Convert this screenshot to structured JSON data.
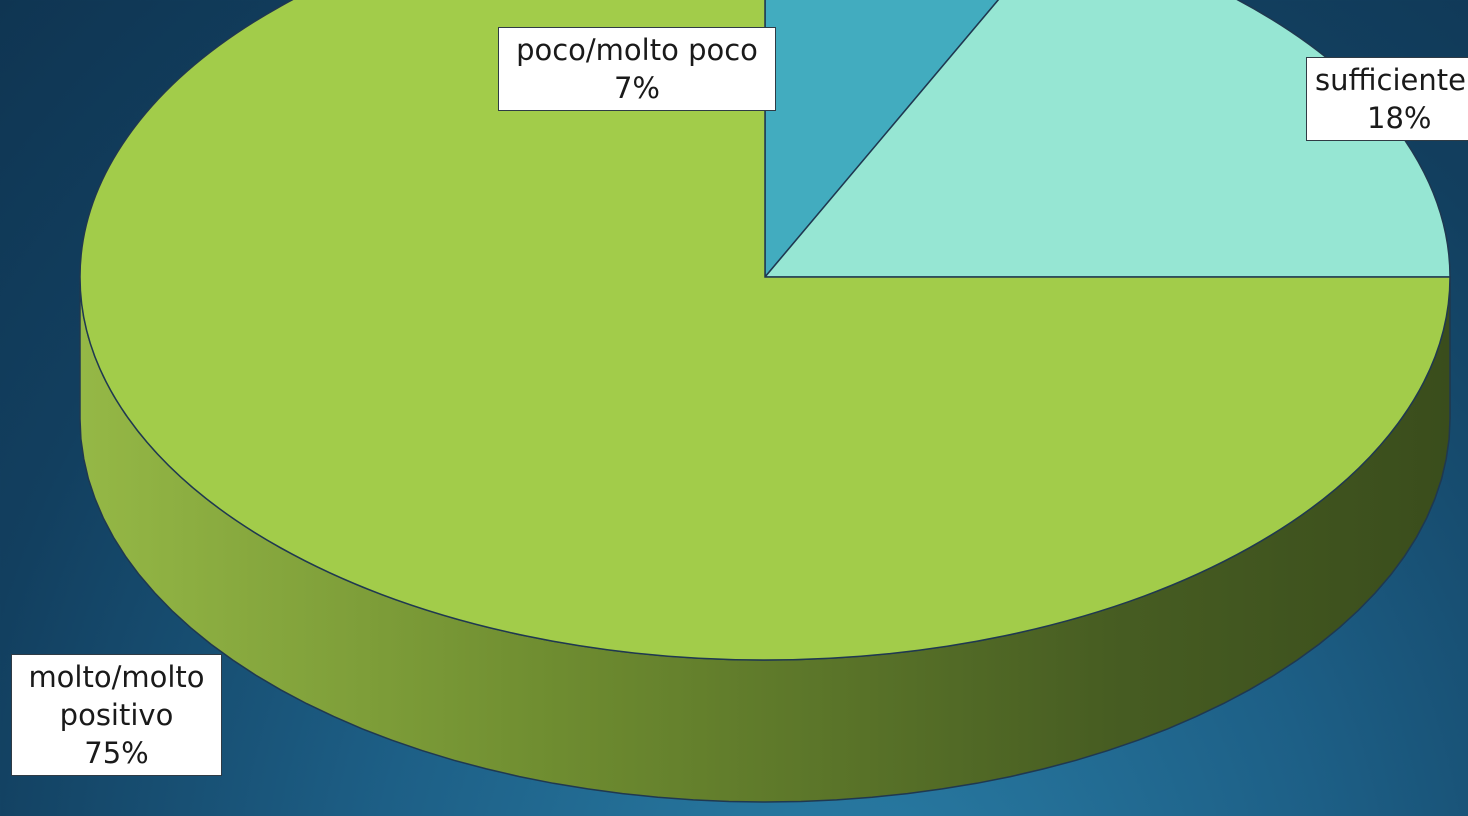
{
  "chart_data": {
    "type": "pie",
    "is_3d": true,
    "start_angle_deg": 90,
    "direction": "clockwise",
    "slices": [
      {
        "label": "poco/molto poco",
        "value": 7,
        "display": "7%",
        "color": "#42acbf"
      },
      {
        "label": "sufficiente",
        "value": 18,
        "display": "18%",
        "color": "#96e6d3"
      },
      {
        "label": "molto/molto positivo",
        "label_lines": [
          "molto/molto",
          "positivo"
        ],
        "value": 75,
        "display": "75%",
        "color": "#a2cc4a"
      }
    ],
    "background_color": "#1a5a82",
    "legend": "none",
    "title": ""
  }
}
